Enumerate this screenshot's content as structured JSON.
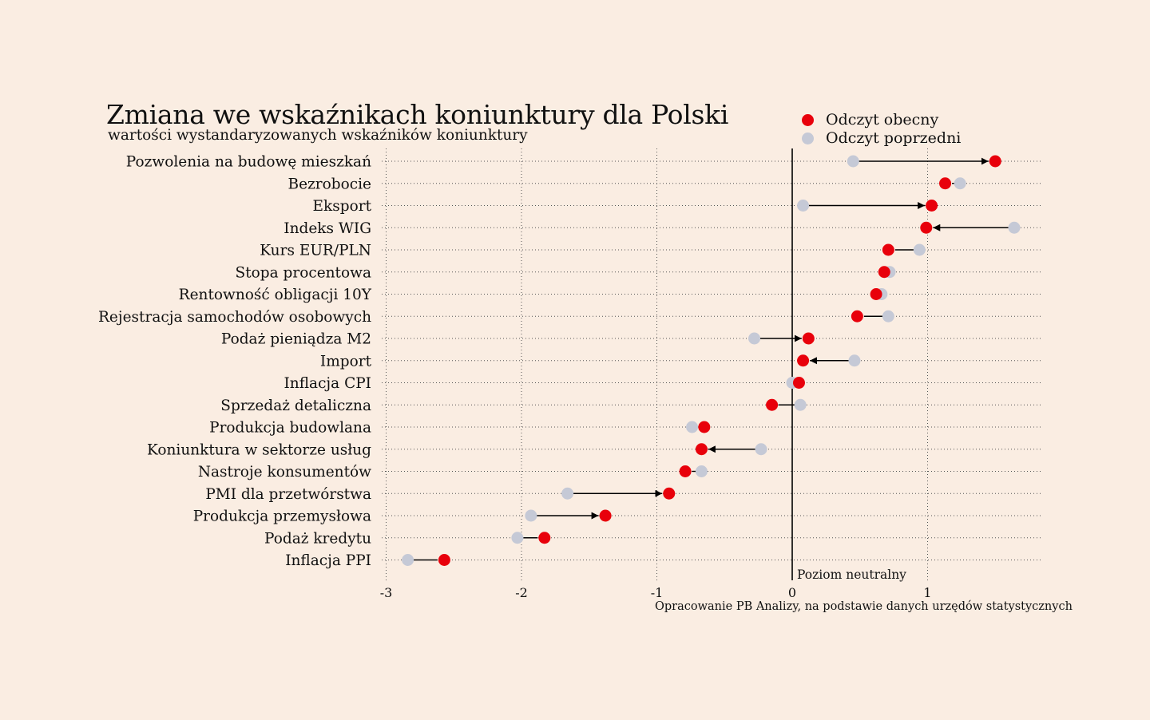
{
  "title": "Zmiana we wskaźnikach koniunktury dla Polski",
  "subtitle": "wartości wystandaryzowanych wskaźników koniunktury",
  "source": "Opracowanie PB Analizy, na podstawie danych urzędów statystycznych",
  "colors": {
    "background": "#faede2",
    "current": "#e8000b",
    "previous": "#c5c9d6",
    "axis": "#000000"
  },
  "chart_data": {
    "type": "scatter",
    "subtype": "dumbbell",
    "title": "Zmiana we wskaźnikach koniunktury dla Polski",
    "subtitle": "wartości wystandaryzowanych wskaźników koniunktury",
    "xlabel": "",
    "ylabel": "",
    "xlim": [
      -3.05,
      1.85
    ],
    "x_ticks": [
      -3,
      -2,
      -1,
      0,
      1
    ],
    "x_tick_labels": [
      "-3",
      "-2",
      "-1",
      "0",
      "1"
    ],
    "grid": "dotted",
    "legend_position": "top-right",
    "neutral_line": {
      "x": 0,
      "label": "Poziom neutralny"
    },
    "series": [
      {
        "name": "Odczyt obecny",
        "color": "#e8000b"
      },
      {
        "name": "Odczyt poprzedni",
        "color": "#c5c9d6"
      }
    ],
    "categories": [
      "Pozwolenia na budowę mieszkań",
      "Bezrobocie",
      "Eksport",
      "Indeks WIG",
      "Kurs EUR/PLN",
      "Stopa procentowa",
      "Rentowność obligacji 10Y",
      "Rejestracja samochodów osobowych",
      "Podaż pieniądza M2",
      "Import",
      "Inflacja CPI",
      "Sprzedaż detaliczna",
      "Produkcja budowlana",
      "Koniunktura w sektorze usług",
      "Nastroje konsumentów",
      "PMI dla przetwórstwa",
      "Produkcja przemysłowa",
      "Podaż kredytu",
      "Inflacja PPI"
    ],
    "current": [
      1.5,
      1.13,
      1.03,
      0.99,
      0.71,
      0.68,
      0.62,
      0.48,
      0.12,
      0.08,
      0.05,
      -0.15,
      -0.65,
      -0.67,
      -0.79,
      -0.91,
      -1.38,
      -1.83,
      -2.57
    ],
    "previous": [
      0.45,
      1.24,
      0.08,
      1.64,
      0.94,
      0.72,
      0.66,
      0.71,
      -0.28,
      0.46,
      0.0,
      0.06,
      -0.74,
      -0.23,
      -0.67,
      -1.66,
      -1.93,
      -2.03,
      -2.84
    ]
  }
}
